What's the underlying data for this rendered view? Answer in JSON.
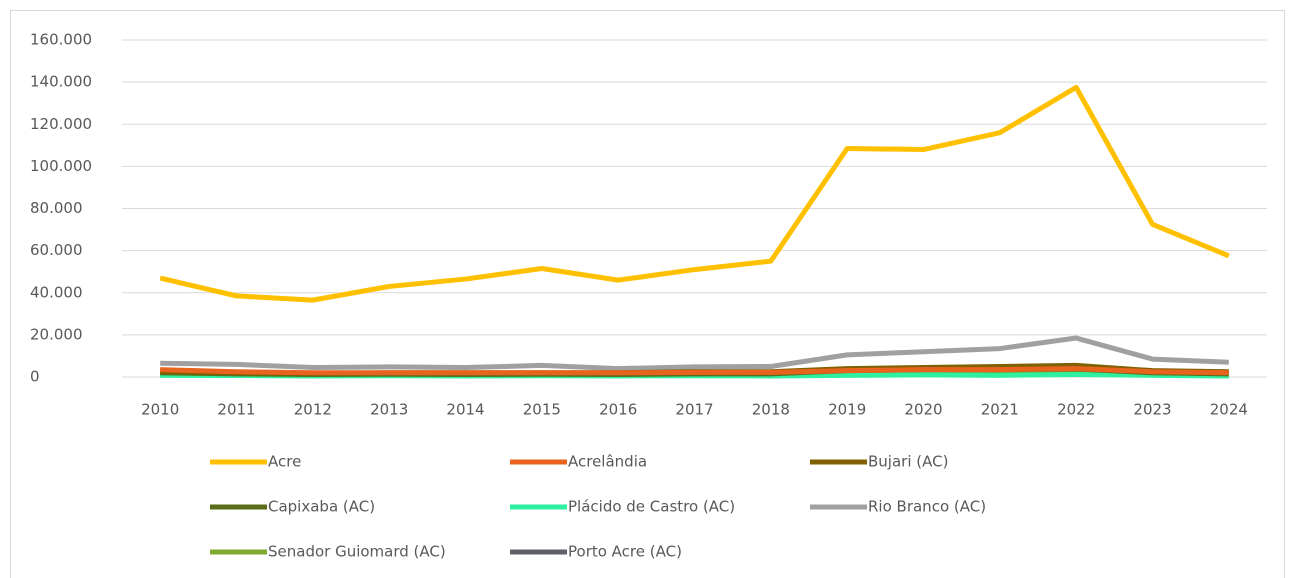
{
  "chart_data": {
    "type": "line",
    "categories": [
      "2010",
      "2011",
      "2012",
      "2013",
      "2014",
      "2015",
      "2016",
      "2017",
      "2018",
      "2019",
      "2020",
      "2021",
      "2022",
      "2023",
      "2024"
    ],
    "series": [
      {
        "name": "Acre",
        "color": "#ffc000",
        "values": [
          47000,
          38500,
          36500,
          43000,
          46500,
          51500,
          46000,
          51000,
          55000,
          108500,
          108000,
          116000,
          137500,
          72500,
          57500
        ]
      },
      {
        "name": "Acrelândia",
        "color": "#e8641e",
        "values": [
          3500,
          2500,
          2000,
          2000,
          2000,
          2000,
          2000,
          2200,
          2200,
          3000,
          3500,
          3500,
          4000,
          2500,
          2000
        ]
      },
      {
        "name": "Bujari (AC)",
        "color": "#806000",
        "values": [
          2500,
          2000,
          1800,
          2000,
          2000,
          2000,
          2000,
          2500,
          2500,
          4000,
          4500,
          5000,
          5500,
          3000,
          2500
        ]
      },
      {
        "name": "Capixaba (AC)",
        "color": "#5a6e1a",
        "values": [
          2000,
          1500,
          1200,
          1300,
          1200,
          1300,
          1200,
          1500,
          1500,
          3000,
          3500,
          3500,
          3800,
          2000,
          1500
        ]
      },
      {
        "name": "Plácido de Castro (AC)",
        "color": "#2ff0a0",
        "values": [
          800,
          700,
          500,
          600,
          500,
          600,
          500,
          600,
          500,
          800,
          1000,
          800,
          1200,
          800,
          500
        ]
      },
      {
        "name": "Rio Branco (AC)",
        "color": "#a0a0a0",
        "values": [
          6500,
          6000,
          4500,
          4800,
          4500,
          5500,
          4000,
          4800,
          5000,
          10500,
          12000,
          13500,
          18500,
          8500,
          7000
        ]
      },
      {
        "name": "Senador Guiomard (AC)",
        "color": "#7fa830",
        "values": [
          1500,
          1200,
          1000,
          1000,
          1000,
          1000,
          1000,
          1200,
          1200,
          1800,
          2000,
          2000,
          2200,
          1500,
          1200
        ]
      },
      {
        "name": "Porto Acre (AC)",
        "color": "#5f5f68",
        "values": [
          1800,
          1500,
          1500,
          1500,
          1500,
          1500,
          1500,
          1800,
          1800,
          3000,
          3200,
          3200,
          3500,
          2000,
          1800
        ]
      }
    ],
    "ylim": [
      0,
      160000
    ],
    "yticks": [
      0,
      {
        "value": 20000,
        "label": "20.000"
      },
      {
        "value": 40000,
        "label": "40.000"
      },
      {
        "value": 60000,
        "label": "60.000"
      },
      {
        "value": 80000,
        "label": "80.000"
      },
      {
        "value": 100000,
        "label": "100.000"
      },
      {
        "value": 120000,
        "label": "120.000"
      },
      {
        "value": 140000,
        "label": "140.000"
      },
      {
        "value": 160000,
        "label": "160.000"
      }
    ],
    "grid": true,
    "legend": "bottom"
  }
}
